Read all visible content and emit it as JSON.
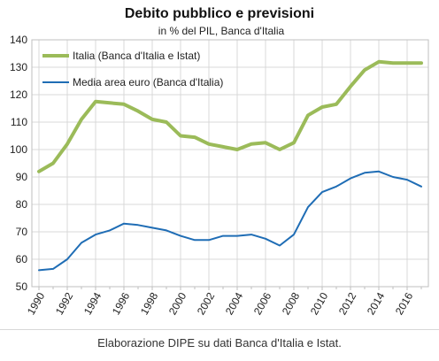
{
  "chart_data": {
    "type": "line",
    "title": "Debito pubblico e previsioni",
    "subtitle": "in % del PIL, Banca d'Italia",
    "ylim": [
      50,
      140
    ],
    "yticks": [
      50,
      60,
      70,
      80,
      90,
      100,
      110,
      120,
      130,
      140
    ],
    "xlim": [
      1990,
      2017
    ],
    "xticks": [
      "1990",
      "1992",
      "1994",
      "1996",
      "1998",
      "2000",
      "2002",
      "2004",
      "2006",
      "2008",
      "2010",
      "2012",
      "2014",
      "2016"
    ],
    "grid": true,
    "legend_position": "top-left",
    "x": [
      1990,
      1991,
      1992,
      1993,
      1994,
      1995,
      1996,
      1997,
      1998,
      1999,
      2000,
      2001,
      2002,
      2003,
      2004,
      2005,
      2006,
      2007,
      2008,
      2009,
      2010,
      2011,
      2012,
      2013,
      2014,
      2015,
      2016,
      2017
    ],
    "series": [
      {
        "name": "Italia (Banca d'Italia e Istat)",
        "color": "#9bbb59",
        "values": [
          92,
          95,
          102,
          111,
          117.5,
          117,
          116.5,
          114,
          111,
          110,
          105,
          104.5,
          102,
          101,
          100,
          102,
          102.5,
          100,
          102.5,
          112.5,
          115.5,
          116.5,
          123,
          129,
          132,
          131.5,
          131.5,
          131.5
        ]
      },
      {
        "name": "Media area euro (Banca d'Italia)",
        "color": "#1f6db5",
        "values": [
          56,
          56.5,
          60,
          66,
          69,
          70.5,
          73,
          72.5,
          71.5,
          70.5,
          68.5,
          67,
          67,
          68.5,
          68.5,
          69,
          67.5,
          65,
          69,
          79,
          84.5,
          86.5,
          89.5,
          91.5,
          92,
          90,
          89,
          86.5
        ]
      }
    ]
  },
  "caption": "Elaborazione DIPE su dati Banca d'Italia e Istat."
}
